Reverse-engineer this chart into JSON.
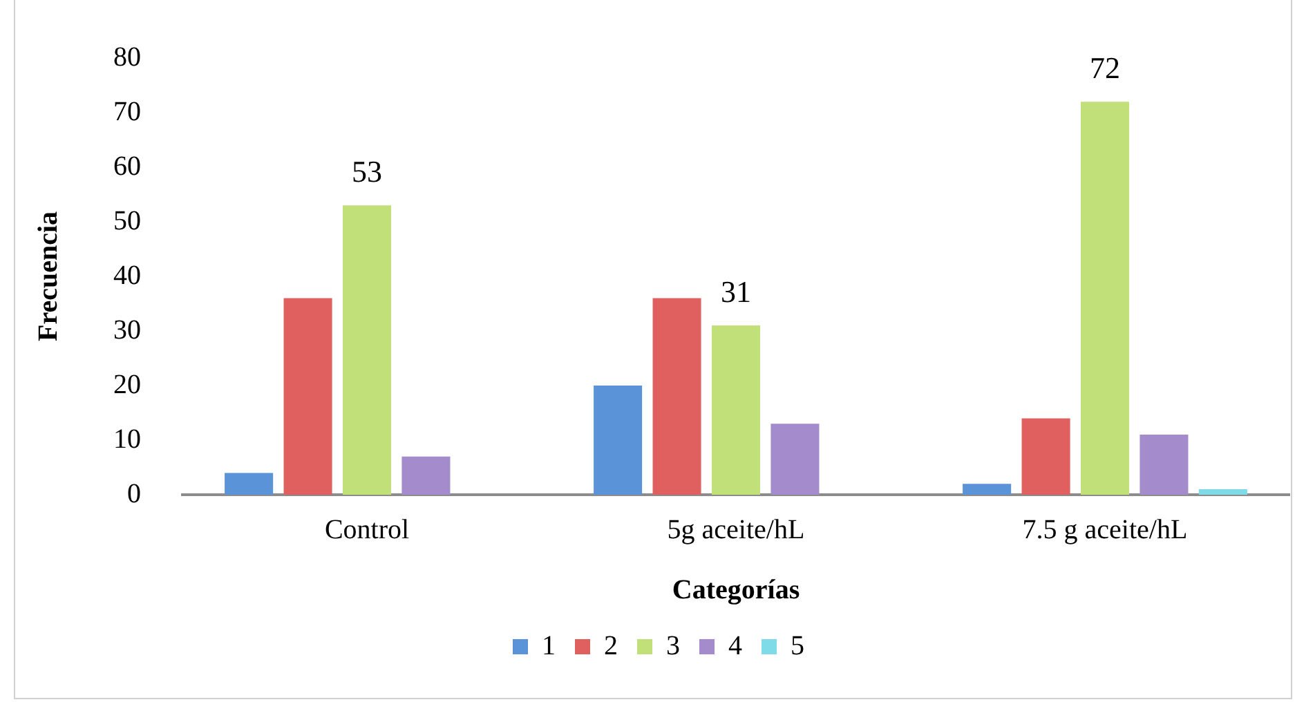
{
  "chart_data": {
    "type": "bar",
    "xlabel": "Categorías",
    "ylabel": "Frecuencia",
    "categories": [
      "Control",
      "5g aceite/hL",
      "7.5 g aceite/hL"
    ],
    "series": [
      {
        "name": "1",
        "color": "#5b93d9",
        "values": [
          4,
          20,
          2
        ]
      },
      {
        "name": "2",
        "color": "#e06060",
        "values": [
          36,
          36,
          14
        ]
      },
      {
        "name": "3",
        "color": "#c2e07a",
        "values": [
          53,
          31,
          72
        ],
        "value_labels": [
          "53",
          "31",
          "72"
        ]
      },
      {
        "name": "4",
        "color": "#a48ccc",
        "values": [
          7,
          13,
          11
        ]
      },
      {
        "name": "5",
        "color": "#7fdbe8",
        "values": [
          0,
          0,
          1
        ]
      }
    ],
    "ylim": [
      0,
      80
    ],
    "yticks": [
      0,
      10,
      20,
      30,
      40,
      50,
      60,
      70,
      80
    ],
    "grid": false,
    "legend": "bottom"
  }
}
